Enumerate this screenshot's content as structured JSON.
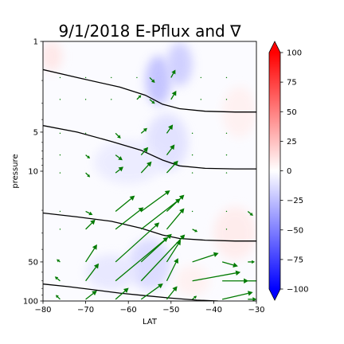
{
  "chart_data": {
    "type": "contourf-quiver",
    "title": "9/1/2018 E-Pflux and ∇",
    "xlabel": "LAT",
    "ylabel": "pressure",
    "xlim": [
      -80,
      -30
    ],
    "ylim": [
      100,
      1
    ],
    "y_scale": "log",
    "x_ticks": [
      -80,
      -70,
      -60,
      -50,
      -40,
      -30
    ],
    "y_ticks": [
      1,
      5,
      10,
      50,
      100
    ],
    "grid": false,
    "colorbar": {
      "colormap": "bwr",
      "range": [
        -100,
        100
      ],
      "ticks": [
        100,
        75,
        50,
        25,
        0,
        -25,
        -50,
        -75,
        -100
      ],
      "extend": "both"
    },
    "contour_lines": [
      {
        "points": [
          [
            -80,
            1.65
          ],
          [
            -72,
            1.9
          ],
          [
            -62,
            2.25
          ],
          [
            -56,
            2.6
          ],
          [
            -52,
            3.05
          ],
          [
            -48,
            3.3
          ],
          [
            -42,
            3.45
          ],
          [
            -35,
            3.5
          ],
          [
            -30,
            3.5
          ]
        ]
      },
      {
        "points": [
          [
            -80,
            4.45
          ],
          [
            -72,
            5.0
          ],
          [
            -64,
            5.9
          ],
          [
            -57,
            6.9
          ],
          [
            -52,
            8.2
          ],
          [
            -48,
            9.1
          ],
          [
            -42,
            9.5
          ],
          [
            -35,
            9.6
          ],
          [
            -30,
            9.6
          ]
        ]
      },
      {
        "points": [
          [
            -80,
            21.0
          ],
          [
            -72,
            22.5
          ],
          [
            -64,
            24.3
          ],
          [
            -57,
            27.5
          ],
          [
            -52,
            31.0
          ],
          [
            -48,
            33.0
          ],
          [
            -42,
            34.0
          ],
          [
            -35,
            34.5
          ],
          [
            -30,
            34.5
          ]
        ]
      },
      {
        "points": [
          [
            -80,
            74.0
          ],
          [
            -74,
            77.5
          ],
          [
            -68,
            82.0
          ],
          [
            -62,
            87.0
          ],
          [
            -56,
            91.0
          ],
          [
            -50,
            95.0
          ],
          [
            -44,
            98.5
          ],
          [
            -39,
            100
          ]
        ]
      }
    ],
    "shading": [
      {
        "x": -53,
        "y": 2.0,
        "rx": 3,
        "ry": 1.1,
        "value": -25
      },
      {
        "x": -48,
        "y": 1.5,
        "rx": 3,
        "ry": 0.7,
        "value": -20
      },
      {
        "x": -51,
        "y": 6.0,
        "rx": 5,
        "ry": 4.0,
        "value": -12
      },
      {
        "x": -60,
        "y": 8.5,
        "rx": 8,
        "ry": 4.0,
        "value": -8
      },
      {
        "x": -55,
        "y": 52.0,
        "rx": 5,
        "ry": 30.0,
        "value": -15
      },
      {
        "x": -64,
        "y": 60.0,
        "rx": 6,
        "ry": 22.0,
        "value": -10
      },
      {
        "x": -78,
        "y": 1.3,
        "rx": 2.5,
        "ry": 0.4,
        "value": 10
      },
      {
        "x": -35,
        "y": 30.0,
        "rx": 5,
        "ry": 18.0,
        "value": 8
      },
      {
        "x": -34,
        "y": 3.5,
        "rx": 4,
        "ry": 2.0,
        "value": 6
      },
      {
        "x": -45,
        "y": 70.0,
        "rx": 4,
        "ry": 22.0,
        "value": 6
      }
    ],
    "quiver": [
      {
        "lat": -76,
        "p": 1.9,
        "u": 0.0,
        "v": 0.0
      },
      {
        "lat": -70,
        "p": 1.9,
        "u": 0.0,
        "v": 0.0
      },
      {
        "lat": -64,
        "p": 1.9,
        "u": 0.0,
        "v": 0.0
      },
      {
        "lat": -58,
        "p": 1.9,
        "u": 0.0,
        "v": 0.0
      },
      {
        "lat": -55,
        "p": 1.9,
        "u": 0.6,
        "v": -0.6
      },
      {
        "lat": -50,
        "p": 1.9,
        "u": 0.5,
        "v": 0.9
      },
      {
        "lat": -43,
        "p": 1.9,
        "u": 0.0,
        "v": 0.0
      },
      {
        "lat": -37,
        "p": 1.9,
        "u": 0.0,
        "v": 0.0
      },
      {
        "lat": -76,
        "p": 2.8,
        "u": 0.0,
        "v": 0.0
      },
      {
        "lat": -70,
        "p": 2.8,
        "u": 0.0,
        "v": 0.0
      },
      {
        "lat": -64,
        "p": 2.8,
        "u": 0.0,
        "v": 0.0
      },
      {
        "lat": -58,
        "p": 2.8,
        "u": 0.5,
        "v": 0.5
      },
      {
        "lat": -55,
        "p": 2.8,
        "u": 0.6,
        "v": -0.5
      },
      {
        "lat": -50,
        "p": 2.8,
        "u": 0.6,
        "v": 1.0
      },
      {
        "lat": -43,
        "p": 2.8,
        "u": 0.0,
        "v": 0.0
      },
      {
        "lat": -37,
        "p": 2.8,
        "u": 0.0,
        "v": 0.0
      },
      {
        "lat": -76,
        "p": 5.1,
        "u": 0.0,
        "v": 0.0
      },
      {
        "lat": -70,
        "p": 5.1,
        "u": 0.0,
        "v": 0.0
      },
      {
        "lat": -63,
        "p": 5.1,
        "u": 0.6,
        "v": -0.6
      },
      {
        "lat": -57,
        "p": 5.1,
        "u": 0.7,
        "v": 0.6
      },
      {
        "lat": -51,
        "p": 5.1,
        "u": 0.7,
        "v": 1.0
      },
      {
        "lat": -45,
        "p": 5.1,
        "u": 0.0,
        "v": 0.0
      },
      {
        "lat": -37,
        "p": 5.1,
        "u": 0.0,
        "v": 0.0
      },
      {
        "lat": -76,
        "p": 7.5,
        "u": 0.0,
        "v": 0.0
      },
      {
        "lat": -70,
        "p": 7.5,
        "u": 0.5,
        "v": -0.4
      },
      {
        "lat": -63,
        "p": 7.5,
        "u": 0.8,
        "v": -0.6
      },
      {
        "lat": -57,
        "p": 7.5,
        "u": 0.8,
        "v": 0.9
      },
      {
        "lat": -51,
        "p": 7.5,
        "u": 0.9,
        "v": 1.2
      },
      {
        "lat": -45,
        "p": 7.5,
        "u": 0.0,
        "v": 0.0
      },
      {
        "lat": -37,
        "p": 7.5,
        "u": 0.0,
        "v": 0.0
      },
      {
        "lat": -76,
        "p": 10.3,
        "u": 0.0,
        "v": 0.0
      },
      {
        "lat": -70,
        "p": 10.3,
        "u": 0.5,
        "v": -0.5
      },
      {
        "lat": -63,
        "p": 10.3,
        "u": 0.9,
        "v": 0.7
      },
      {
        "lat": -57,
        "p": 10.3,
        "u": 1.2,
        "v": 1.3
      },
      {
        "lat": -51,
        "p": 10.3,
        "u": 1.3,
        "v": 1.4
      },
      {
        "lat": -45,
        "p": 10.3,
        "u": 0.0,
        "v": 0.0
      },
      {
        "lat": -37,
        "p": 10.3,
        "u": 0.0,
        "v": 0.0
      },
      {
        "lat": -76,
        "p": 20.4,
        "u": 0.0,
        "v": 0.0
      },
      {
        "lat": -70,
        "p": 20.4,
        "u": 0.8,
        "v": -0.4
      },
      {
        "lat": -63,
        "p": 20.4,
        "u": 2.2,
        "v": 1.8
      },
      {
        "lat": -57,
        "p": 20.4,
        "u": 3.3,
        "v": 2.4
      },
      {
        "lat": -51,
        "p": 20.4,
        "u": 2.0,
        "v": 1.9
      },
      {
        "lat": -45,
        "p": 20.4,
        "u": 0.0,
        "v": 0.0
      },
      {
        "lat": -37,
        "p": 20.4,
        "u": 0.0,
        "v": 0.0
      },
      {
        "lat": -32,
        "p": 20.4,
        "u": 0.6,
        "v": -0.5
      },
      {
        "lat": -76,
        "p": 28.0,
        "u": 0.0,
        "v": 0.0
      },
      {
        "lat": -70,
        "p": 28.0,
        "u": 1.1,
        "v": 1.1
      },
      {
        "lat": -63,
        "p": 28.0,
        "u": 3.2,
        "v": 2.5
      },
      {
        "lat": -57,
        "p": 28.0,
        "u": 4.5,
        "v": 3.5
      },
      {
        "lat": -51,
        "p": 28.0,
        "u": 2.0,
        "v": 2.4
      },
      {
        "lat": -45,
        "p": 28.0,
        "u": 0.6,
        "v": -0.3
      },
      {
        "lat": -37,
        "p": 28.0,
        "u": 0.0,
        "v": 0.0
      },
      {
        "lat": -76,
        "p": 50.0,
        "u": -0.4,
        "v": 0.3
      },
      {
        "lat": -70,
        "p": 50.0,
        "u": 1.3,
        "v": 2.0
      },
      {
        "lat": -63,
        "p": 50.0,
        "u": 5.0,
        "v": 4.5
      },
      {
        "lat": -57,
        "p": 50.0,
        "u": 3.5,
        "v": 3.2
      },
      {
        "lat": -51,
        "p": 50.0,
        "u": 1.6,
        "v": 2.5
      },
      {
        "lat": -45,
        "p": 50.0,
        "u": 3.0,
        "v": 1.0
      },
      {
        "lat": -38,
        "p": 50.0,
        "u": 1.8,
        "v": -0.5
      },
      {
        "lat": -32,
        "p": 50.0,
        "u": 0.8,
        "v": 0.0
      },
      {
        "lat": -76,
        "p": 70.0,
        "u": -0.6,
        "v": 0.5
      },
      {
        "lat": -70,
        "p": 70.0,
        "u": 1.5,
        "v": 2.0
      },
      {
        "lat": -63,
        "p": 70.0,
        "u": 6.0,
        "v": 5.0
      },
      {
        "lat": -57,
        "p": 70.0,
        "u": 5.0,
        "v": 5.3
      },
      {
        "lat": -51,
        "p": 70.0,
        "u": 1.3,
        "v": 2.6
      },
      {
        "lat": -45,
        "p": 70.0,
        "u": 5.5,
        "v": 1.0
      },
      {
        "lat": -38,
        "p": 70.0,
        "u": 3.0,
        "v": 0.0
      },
      {
        "lat": -32,
        "p": 70.0,
        "u": 1.8,
        "v": 0.0
      },
      {
        "lat": -76,
        "p": 97.0,
        "u": -0.5,
        "v": 0.5
      },
      {
        "lat": -70,
        "p": 97.0,
        "u": 1.3,
        "v": 1.0
      },
      {
        "lat": -63,
        "p": 97.0,
        "u": 1.5,
        "v": 1.3
      },
      {
        "lat": -57,
        "p": 97.0,
        "u": 2.5,
        "v": 1.8
      },
      {
        "lat": -51,
        "p": 97.0,
        "u": 1.2,
        "v": 1.5
      },
      {
        "lat": -45,
        "p": 97.0,
        "u": 0.5,
        "v": 0.4
      },
      {
        "lat": -38,
        "p": 97.0,
        "u": 3.5,
        "v": 0.8
      },
      {
        "lat": -32,
        "p": 97.0,
        "u": 1.0,
        "v": 0.0
      }
    ]
  },
  "colors": {
    "arrow": "#007a00",
    "contour_line": "#000000",
    "cmap_positive": "#ff0000",
    "cmap_negative": "#0000ff",
    "cmap_zero": "#ffffff"
  }
}
